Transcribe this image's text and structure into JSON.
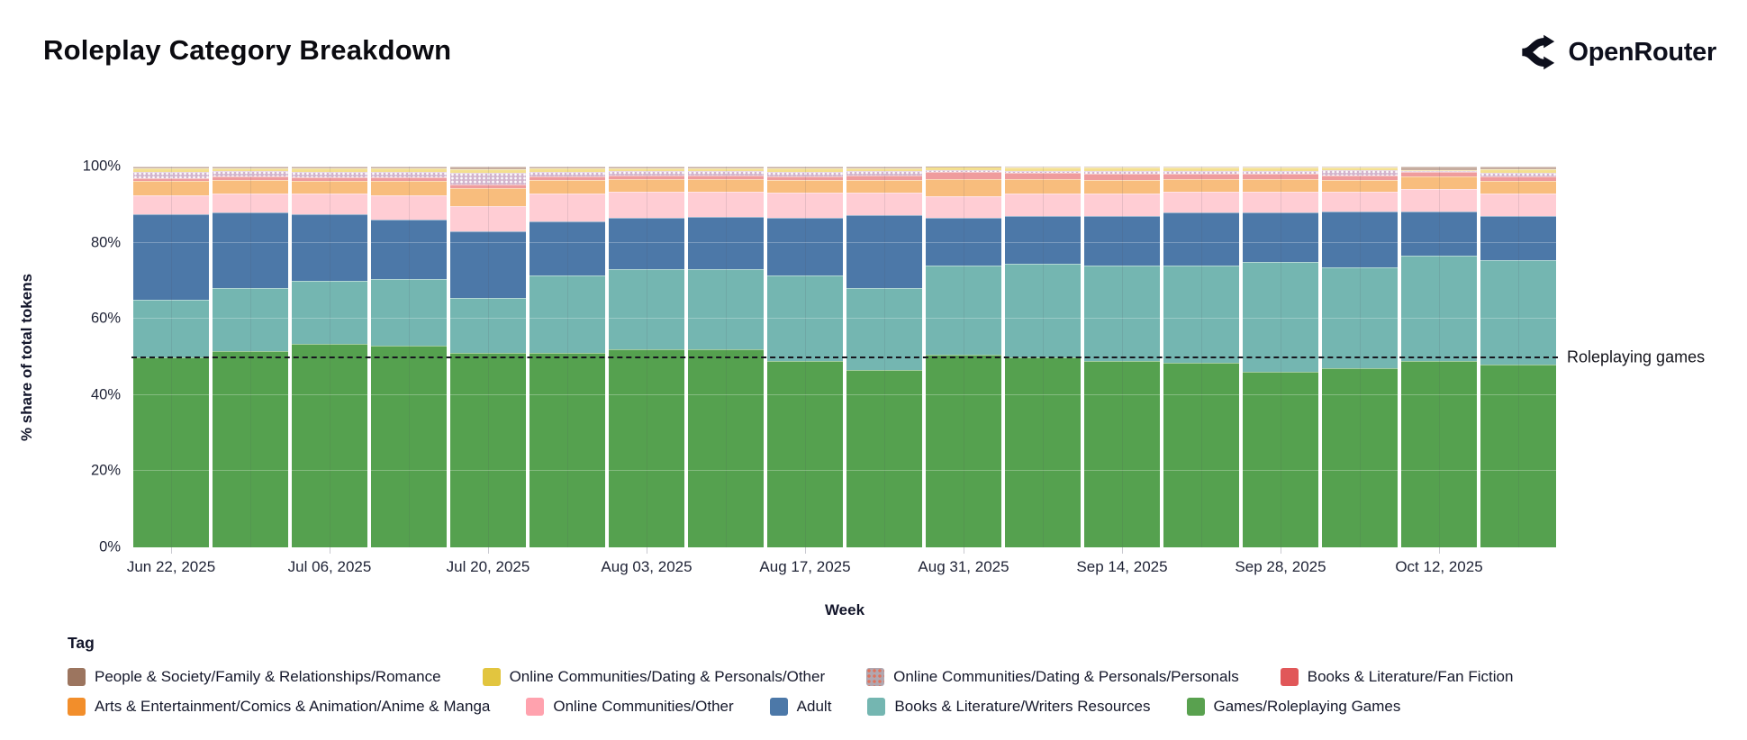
{
  "header": {
    "title": "Roleplay Category Breakdown",
    "brand": "OpenRouter"
  },
  "chart_data": {
    "type": "bar",
    "stacked": true,
    "title": "Roleplay Category Breakdown",
    "xlabel": "Week",
    "ylabel": "% share of total tokens",
    "ylim": [
      0,
      100
    ],
    "grid": "horizontal",
    "legend_position": "bottom",
    "y_ticks": [
      "0%",
      "20%",
      "40%",
      "60%",
      "80%",
      "100%"
    ],
    "x": [
      "Jun 22, 2025",
      "Jun 29, 2025",
      "Jul 06, 2025",
      "Jul 13, 2025",
      "Jul 20, 2025",
      "Jul 27, 2025",
      "Aug 03, 2025",
      "Aug 10, 2025",
      "Aug 17, 2025",
      "Aug 24, 2025",
      "Aug 31, 2025",
      "Sep 07, 2025",
      "Sep 14, 2025",
      "Sep 21, 2025",
      "Sep 28, 2025",
      "Oct 05, 2025",
      "Oct 12, 2025",
      "Oct 19, 2025"
    ],
    "x_tick_labels": [
      "Jun 22, 2025",
      "Jul 06, 2025",
      "Jul 20, 2025",
      "Aug 03, 2025",
      "Aug 17, 2025",
      "Aug 31, 2025",
      "Sep 14, 2025",
      "Sep 28, 2025",
      "Oct 12, 2025"
    ],
    "annotation": {
      "value": 50,
      "label": "Roleplaying games",
      "style": "dashed"
    },
    "series": [
      {
        "name": "Games/Roleplaying Games",
        "fill": "#55A14F",
        "values": [
          50,
          51.5,
          53.5,
          53,
          51,
          51,
          52,
          52,
          49,
          46.5,
          50.5,
          50,
          49,
          48.5,
          46,
          47,
          49,
          48
        ]
      },
      {
        "name": "Books & Literature/Writers Resources",
        "fill": "#74B6B1",
        "values": [
          15,
          16.5,
          16.5,
          17.5,
          14.5,
          20.5,
          21,
          21,
          22.5,
          21.5,
          23.5,
          24.5,
          25,
          25.5,
          29,
          26.5,
          27.5,
          27.5
        ]
      },
      {
        "name": "Adult",
        "fill": "#4C78A8",
        "values": [
          22.5,
          20,
          17.5,
          15.5,
          17.5,
          14,
          13.5,
          13.8,
          15,
          19.3,
          12.5,
          12.5,
          13,
          14,
          13,
          14.7,
          11.8,
          11.5
        ]
      },
      {
        "name": "Online Communities/Other",
        "fill": "#FFCDD4",
        "values": [
          5,
          5,
          5.5,
          6.5,
          6.5,
          7.5,
          6.8,
          6.5,
          6.7,
          5.9,
          5.7,
          5.8,
          5.9,
          5.3,
          5.4,
          5.1,
          5.8,
          6
        ]
      },
      {
        "name": "Arts & Entertainment/Comics & Animation/Anime & Manga",
        "fill": "#F8BD7D",
        "values": [
          3.8,
          3.5,
          3.3,
          3.7,
          4.8,
          3.5,
          3.3,
          3.3,
          3.3,
          3.3,
          4.5,
          3.8,
          3.6,
          3.3,
          3.3,
          3.2,
          3.4,
          3.2
        ]
      },
      {
        "name": "Books & Literature/Fan Fiction",
        "fill": "#EF9C9D",
        "values": [
          0.7,
          0.8,
          0.9,
          1,
          1,
          1,
          1,
          1,
          1,
          1.1,
          1.8,
          1.7,
          1.7,
          1.6,
          1.5,
          1.2,
          1.1,
          1.1
        ]
      },
      {
        "name": "Online Communities/Dating & Personals/Personals",
        "fill": "#D2B5CD",
        "pattern": "dots",
        "values": [
          1.7,
          1.5,
          1.4,
          1.3,
          3,
          1.2,
          1.2,
          1.2,
          1.2,
          1.2,
          0.5,
          0.6,
          0.7,
          0.7,
          0.7,
          1.3,
          0.2,
          1
        ]
      },
      {
        "name": "Online Communities/Dating & Personals/Other",
        "fill": "#F3DF90",
        "values": [
          0.9,
          0.8,
          0.9,
          1,
          1.1,
          0.9,
          0.8,
          0.8,
          0.9,
          0.8,
          0.9,
          0.8,
          0.8,
          0.8,
          0.8,
          0.8,
          0.2,
          1.1
        ]
      },
      {
        "name": "People & Society/Family & Relationships/Romance",
        "fill": "#C6ADA0",
        "values": [
          0.4,
          0.4,
          0.5,
          0.5,
          0.6,
          0.4,
          0.4,
          0.4,
          0.4,
          0.4,
          0.1,
          0.3,
          0.3,
          0.3,
          0.3,
          0.2,
          1.0,
          0.6
        ]
      }
    ]
  },
  "legend": {
    "title": "Tag",
    "rows": [
      [
        {
          "label": "People & Society/Family & Relationships/Romance",
          "color": "#9C755F"
        },
        {
          "label": "Online Communities/Dating & Personals/Other",
          "color": "#E2C53F"
        },
        {
          "label": "Online Communities/Dating & Personals/Personals",
          "color": "#B1A7B0",
          "pattern": "dots"
        },
        {
          "label": "Books & Literature/Fan Fiction",
          "color": "#E15759"
        }
      ],
      [
        {
          "label": "Arts & Entertainment/Comics & Animation/Anime & Manga",
          "color": "#F28E2B"
        },
        {
          "label": "Online Communities/Other",
          "color": "#FFA2AE"
        },
        {
          "label": "Adult",
          "color": "#4C78A8"
        },
        {
          "label": "Books & Literature/Writers Resources",
          "color": "#74B6B1"
        },
        {
          "label": "Games/Roleplaying Games",
          "color": "#59A14F"
        }
      ]
    ]
  }
}
